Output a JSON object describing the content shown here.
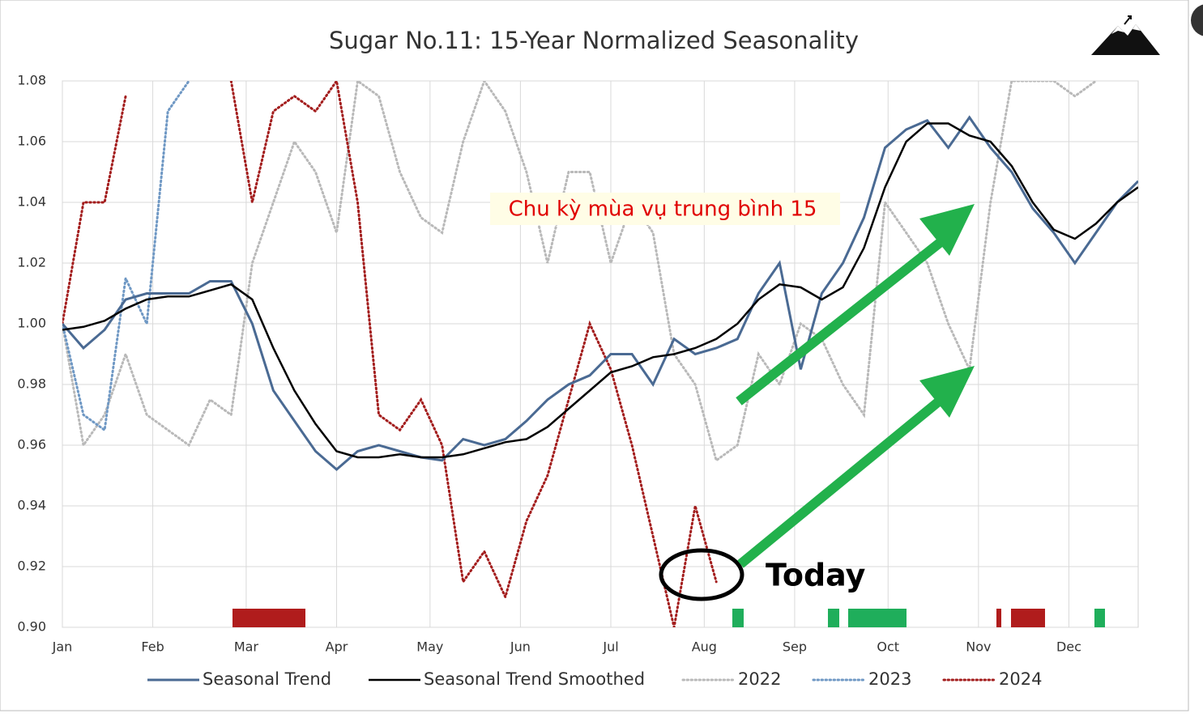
{
  "chart_data": {
    "type": "line",
    "title": "Sugar No.11: 15-Year Normalized Seasonality",
    "annotations": [
      "Chu kỳ mùa vụ trung bình 15",
      "Today"
    ],
    "x": [
      0,
      7,
      14,
      21,
      28,
      35,
      42,
      49,
      56,
      63,
      70,
      77,
      84,
      91,
      98,
      105,
      112,
      119,
      126,
      133,
      140,
      147,
      154,
      161,
      168,
      175,
      182,
      189,
      196,
      203,
      210,
      217,
      224,
      231,
      238,
      245,
      252,
      259,
      266,
      273,
      280,
      287,
      294,
      301,
      308,
      315,
      322,
      329,
      336,
      343,
      350,
      357
    ],
    "xlim": [
      0,
      357
    ],
    "xticks": [
      {
        "value": 0,
        "label": "Jan"
      },
      {
        "value": 30,
        "label": "Feb"
      },
      {
        "value": 61,
        "label": "Mar"
      },
      {
        "value": 91,
        "label": "Apr"
      },
      {
        "value": 122,
        "label": "May"
      },
      {
        "value": 152,
        "label": "Jun"
      },
      {
        "value": 182,
        "label": "Jul"
      },
      {
        "value": 213,
        "label": "Aug"
      },
      {
        "value": 243,
        "label": "Sep"
      },
      {
        "value": 274,
        "label": "Oct"
      },
      {
        "value": 304,
        "label": "Nov"
      },
      {
        "value": 334,
        "label": "Dec"
      }
    ],
    "ylim": [
      0.9,
      1.08
    ],
    "yticks": [
      {
        "value": 0.9,
        "label": "0.90"
      },
      0.92,
      0.94,
      0.96,
      0.98,
      {
        "value": 1.0,
        "label": "1.00"
      },
      1.02,
      1.04,
      1.06,
      1.08
    ],
    "grid": true,
    "legend": "bottom",
    "series": [
      {
        "name": "Seasonal Trend",
        "color": "#4a6a93",
        "style": "solid",
        "values": [
          1.0,
          0.992,
          0.998,
          1.008,
          1.01,
          1.01,
          1.01,
          1.014,
          1.014,
          1.0,
          0.978,
          0.968,
          0.958,
          0.952,
          0.958,
          0.96,
          0.958,
          0.956,
          0.955,
          0.962,
          0.96,
          0.962,
          0.968,
          0.975,
          0.98,
          0.983,
          0.99,
          0.99,
          0.98,
          0.995,
          0.99,
          0.992,
          0.995,
          1.01,
          1.02,
          0.985,
          1.01,
          1.02,
          1.035,
          1.058,
          1.064,
          1.067,
          1.058,
          1.068,
          1.058,
          1.05,
          1.038,
          1.03,
          1.02,
          1.03,
          1.04,
          1.047
        ]
      },
      {
        "name": "Seasonal Trend Smoothed",
        "color": "#000000",
        "style": "solid",
        "values": [
          0.998,
          0.999,
          1.001,
          1.005,
          1.008,
          1.009,
          1.009,
          1.011,
          1.013,
          1.008,
          0.992,
          0.978,
          0.967,
          0.958,
          0.956,
          0.956,
          0.957,
          0.956,
          0.956,
          0.957,
          0.959,
          0.961,
          0.962,
          0.966,
          0.972,
          0.978,
          0.984,
          0.986,
          0.989,
          0.99,
          0.992,
          0.995,
          1.0,
          1.008,
          1.013,
          1.012,
          1.008,
          1.012,
          1.025,
          1.045,
          1.06,
          1.066,
          1.066,
          1.062,
          1.06,
          1.052,
          1.04,
          1.031,
          1.028,
          1.033,
          1.04,
          1.045
        ]
      },
      {
        "name": "2022",
        "color": "#b9b9b9",
        "style": "dotted",
        "values": [
          1.0,
          0.96,
          0.97,
          0.99,
          0.97,
          0.965,
          0.96,
          0.975,
          0.97,
          1.02,
          1.04,
          1.06,
          1.05,
          1.03,
          1.08,
          1.075,
          1.05,
          1.035,
          1.03,
          1.06,
          1.08,
          1.07,
          1.05,
          1.02,
          1.05,
          1.05,
          1.02,
          1.04,
          1.03,
          0.99,
          0.98,
          0.955,
          0.96,
          0.99,
          0.98,
          1.0,
          0.995,
          0.98,
          0.97,
          1.04,
          1.03,
          1.02,
          1.0,
          0.985,
          1.04,
          1.08,
          1.08,
          1.08,
          1.075,
          1.08,
          null,
          null
        ]
      },
      {
        "name": "2023",
        "color": "#6f98c4",
        "style": "dotted",
        "values": [
          1.0,
          0.97,
          0.965,
          1.015,
          1.0,
          1.07,
          1.08,
          null,
          null,
          null,
          null,
          null,
          null,
          null,
          null,
          null,
          null,
          null,
          null,
          null,
          null,
          null,
          null,
          null,
          null,
          null,
          null,
          null,
          null,
          null,
          null,
          null,
          null,
          null,
          null,
          null,
          null,
          null,
          null,
          null,
          null,
          null,
          null,
          null,
          null,
          null,
          null,
          null,
          null,
          null,
          null,
          null
        ]
      },
      {
        "name": "2024",
        "color": "#a31d1d",
        "style": "dotted",
        "values": [
          1.0,
          1.04,
          1.04,
          1.075,
          null,
          null,
          null,
          null,
          1.08,
          1.04,
          1.07,
          1.075,
          1.07,
          1.08,
          1.04,
          0.97,
          0.965,
          0.975,
          0.96,
          0.915,
          0.925,
          0.91,
          0.935,
          0.95,
          0.975,
          1.0,
          0.985,
          0.96,
          0.93,
          0.9,
          0.94,
          0.915,
          null,
          null,
          null,
          null,
          null,
          null,
          null,
          null,
          null,
          null,
          null,
          null,
          null,
          null,
          null,
          null,
          null,
          null,
          null,
          null
        ]
      }
    ]
  }
}
